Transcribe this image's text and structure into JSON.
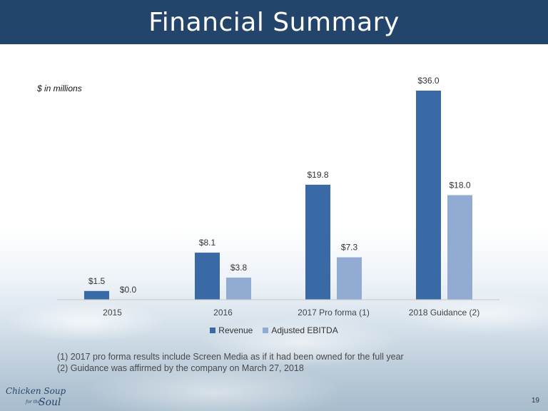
{
  "header": {
    "title": "Financial Summary"
  },
  "units_note": "$ in millions",
  "chart_data": {
    "type": "bar",
    "categories": [
      "2015",
      "2016",
      "2017 Pro forma (1)",
      "2018 Guidance (2)"
    ],
    "series": [
      {
        "name": "Revenue",
        "values": [
          1.5,
          8.1,
          19.8,
          36.0
        ],
        "labels": [
          "$1.5",
          "$8.1",
          "$19.8",
          "$36.0"
        ],
        "color": "#3a6aa5"
      },
      {
        "name": "Adjusted EBITDA",
        "values": [
          0.0,
          3.8,
          7.3,
          18.0
        ],
        "labels": [
          "$0.0",
          "$3.8",
          "$7.3",
          "$18.0"
        ],
        "color": "#92abd2"
      }
    ],
    "ylim": [
      0,
      36
    ],
    "grid": false,
    "legend_position": "bottom"
  },
  "footnotes": [
    "(1) 2017 pro forma results include Screen Media as if it had been owned for the full year",
    "(2) Guidance was affirmed by the company on March 27, 2018"
  ],
  "logo": {
    "text": "Chicken Soup for the Soul",
    "line1": "Chicken Soup",
    "line2": "for the",
    "line3": "Soul"
  },
  "page_number": "19",
  "colors": {
    "header_bg": "#24456b",
    "revenue": "#3a6aa5",
    "ebitda": "#92abd2"
  }
}
